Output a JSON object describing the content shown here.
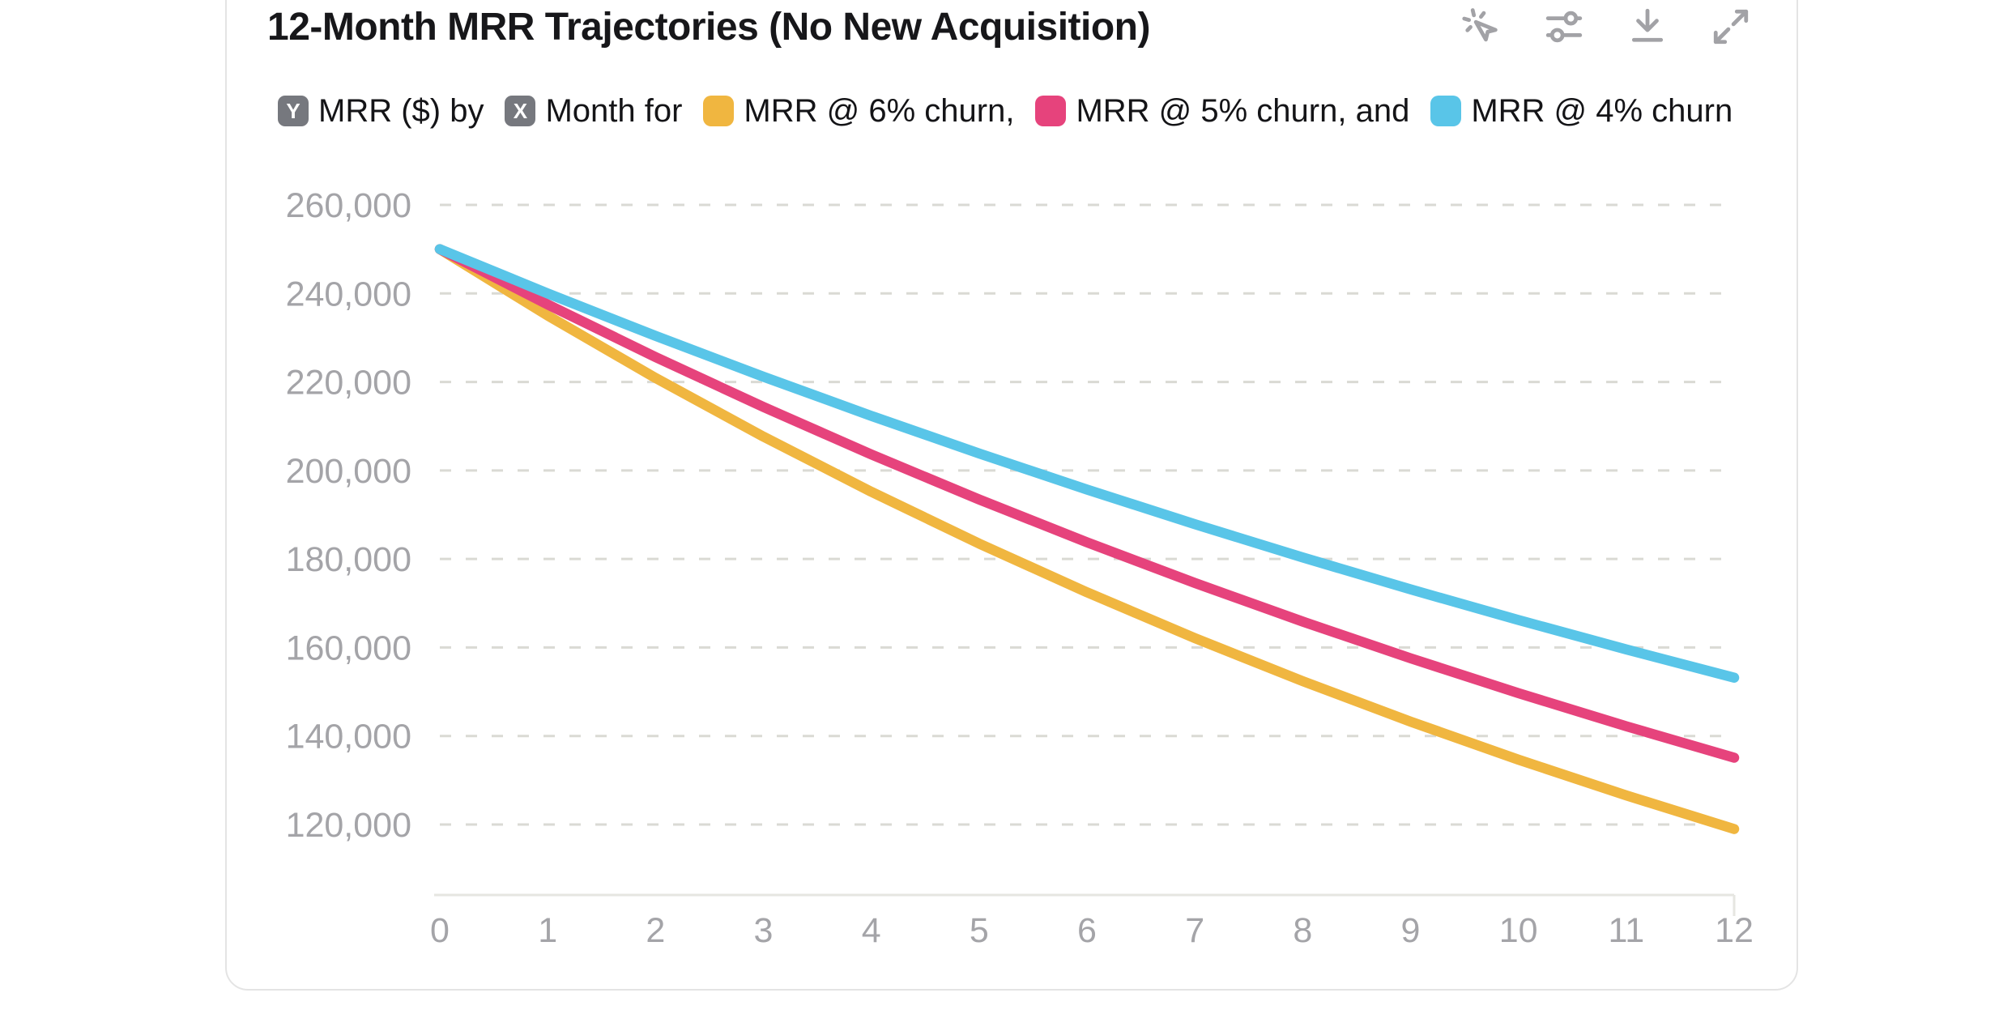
{
  "card": {
    "title": "12-Month MRR Trajectories (No New Acquisition)"
  },
  "toolbar": {
    "icons": [
      "cursor-click",
      "sliders",
      "download",
      "expand"
    ]
  },
  "legend": {
    "y_axis_badge": "Y",
    "y_axis_text": "MRR ($) by",
    "x_axis_badge": "X",
    "x_axis_text": "Month for",
    "series": [
      {
        "label": "MRR @ 6% churn,"
      },
      {
        "label": "MRR @ 5% churn, and"
      },
      {
        "label": "MRR @ 4% churn"
      }
    ]
  },
  "chart_data": {
    "type": "line",
    "title": "12-Month MRR Trajectories (No New Acquisition)",
    "xlabel": "Month",
    "ylabel": "MRR ($)",
    "x": [
      0,
      1,
      2,
      3,
      4,
      5,
      6,
      7,
      8,
      9,
      10,
      11,
      12
    ],
    "x_tick_labels": [
      "0",
      "1",
      "2",
      "3",
      "4",
      "5",
      "6",
      "7",
      "8",
      "9",
      "10",
      "11",
      "12"
    ],
    "y_ticks": [
      260000,
      240000,
      220000,
      200000,
      180000,
      160000,
      140000,
      120000
    ],
    "y_tick_labels": [
      "260,000",
      "240,000",
      "220,000",
      "200,000",
      "180,000",
      "160,000",
      "140,000",
      "120,000"
    ],
    "ylim": [
      120000,
      260000
    ],
    "grid": "horizontal-dashed",
    "legend_position": "top",
    "series": [
      {
        "name": "MRR @ 6% churn",
        "color": "#F0B640",
        "values": [
          250000,
          235000,
          220900,
          207646,
          195187,
          183476,
          172467,
          162119,
          152392,
          143249,
          134654,
          126575,
          118980
        ]
      },
      {
        "name": "MRR @ 5% churn",
        "color": "#E6437C",
        "values": [
          250000,
          237500,
          225625,
          214344,
          203627,
          193445,
          183773,
          174584,
          165855,
          157562,
          149684,
          142200,
          135090
        ]
      },
      {
        "name": "MRR @ 4% churn",
        "color": "#59C5E8",
        "values": [
          250000,
          240000,
          230400,
          221184,
          212337,
          203843,
          195689,
          187862,
          180347,
          173134,
          166208,
          159560,
          153177
        ]
      }
    ]
  },
  "colors": {
    "title_text": "#17171a",
    "tick_text": "#a4a4a8",
    "gridline": "#dadad4",
    "axis_line": "#e6e6e1",
    "badge_bg": "#76787e",
    "card_border": "#e4e4e4",
    "icon_gray": "#a2a2a6"
  }
}
